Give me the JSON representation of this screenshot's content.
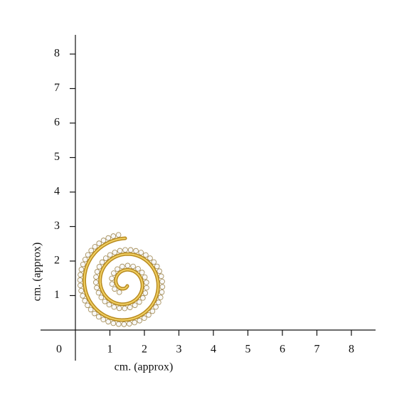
{
  "axes": {
    "origin_label": "0",
    "x": {
      "label": "cm. (approx)",
      "ticks": [
        1,
        2,
        3,
        4,
        5,
        6,
        7,
        8
      ]
    },
    "y": {
      "label": "cm. (approx)",
      "ticks": [
        1,
        2,
        3,
        4,
        5,
        6,
        7,
        8
      ]
    }
  }
}
